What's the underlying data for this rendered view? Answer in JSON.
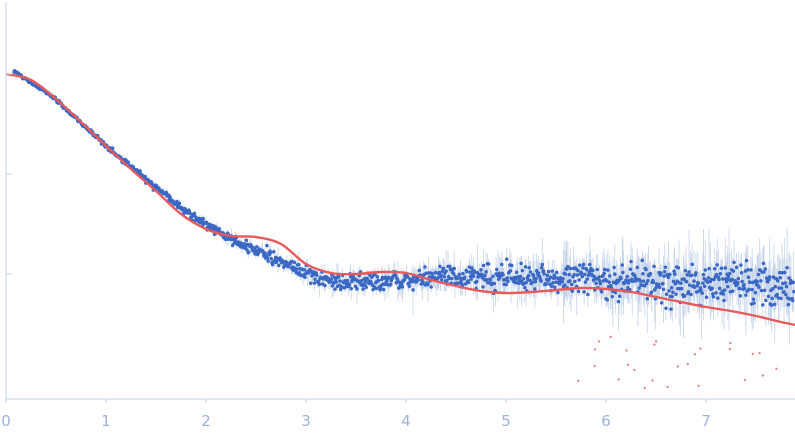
{
  "chart_data": {
    "type": "scatter",
    "title": "",
    "xlabel": "",
    "ylabel": "",
    "xlim": [
      0,
      7.9
    ],
    "ylim": [
      -3.0,
      0.4
    ],
    "x_ticks": [
      "0",
      "1",
      "2",
      "3",
      "4",
      "5",
      "6",
      "7"
    ],
    "y_tick_values": [
      -2.0,
      -1.0,
      0.0
    ],
    "grid": false,
    "legend": "none",
    "colors": {
      "points": "#3a68c4",
      "error_bars": "#b9cbe6",
      "fit": "#e85a5a",
      "outliers": "#e88888",
      "axis": "#c5d3ea",
      "tick_label": "#9db3d6"
    },
    "fit_curve": {
      "x": [
        0.0,
        0.25,
        0.5,
        0.75,
        1.0,
        1.25,
        1.5,
        1.75,
        2.0,
        2.25,
        2.5,
        2.75,
        3.0,
        3.25,
        3.5,
        3.75,
        4.0,
        4.25,
        4.5,
        4.75,
        5.0,
        5.25,
        5.5,
        5.75,
        6.0,
        6.25,
        6.5,
        6.75,
        7.0,
        7.25,
        7.5,
        7.75,
        7.9
      ],
      "y": [
        0.0,
        -0.06,
        -0.25,
        -0.48,
        -0.72,
        -0.95,
        -1.17,
        -1.4,
        -1.55,
        -1.62,
        -1.63,
        -1.7,
        -1.9,
        -1.99,
        -2.0,
        -1.98,
        -1.99,
        -2.06,
        -2.12,
        -2.17,
        -2.19,
        -2.18,
        -2.16,
        -2.14,
        -2.15,
        -2.18,
        -2.23,
        -2.28,
        -2.33,
        -2.37,
        -2.42,
        -2.48,
        -2.51
      ]
    },
    "observations": {
      "x_start": 0.08,
      "x_end": 7.88,
      "n_points": 1250,
      "trend_x": [
        0.08,
        0.5,
        1.0,
        1.5,
        1.8,
        2.0,
        2.3,
        2.6,
        2.9,
        3.2,
        3.6,
        4.0,
        4.5,
        5.0,
        5.5,
        6.0,
        6.5,
        7.0,
        7.5,
        7.88
      ],
      "trend_y": [
        0.03,
        -0.25,
        -0.72,
        -1.13,
        -1.38,
        -1.5,
        -1.68,
        -1.8,
        -1.95,
        -2.07,
        -2.07,
        -2.06,
        -2.02,
        -2.03,
        -2.05,
        -2.05,
        -2.07,
        -2.1,
        -2.1,
        -2.1
      ],
      "noise_sd_start": 0.02,
      "noise_sd_end": 0.3,
      "error_sd_start": 0.01,
      "error_sd_end": 0.45
    }
  }
}
